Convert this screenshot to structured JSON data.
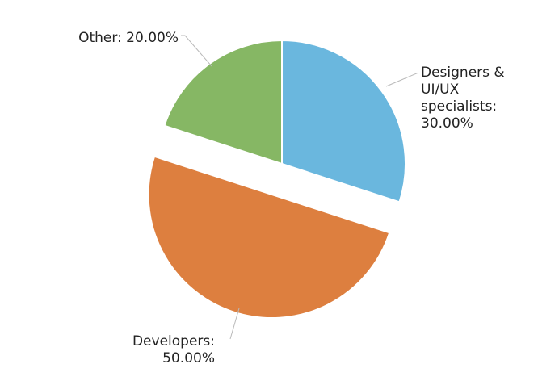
{
  "chart_data": {
    "type": "pie",
    "title": "",
    "slices": [
      {
        "name": "Designers & UI/UX specialists",
        "value": 30.0,
        "color": "#6ab7de",
        "exploded": false,
        "label_lines": [
          "Designers &",
          "UI/UX",
          "specialists:",
          "30.00%"
        ]
      },
      {
        "name": "Developers",
        "value": 50.0,
        "color": "#dd7f3f",
        "exploded": true,
        "label_lines": [
          "Developers:",
          "50.00%"
        ]
      },
      {
        "name": "Other",
        "value": 20.0,
        "color": "#86b764",
        "exploded": false,
        "label_lines": [
          "Other: 20.00%"
        ]
      }
    ],
    "start_angle_deg": 0,
    "direction": "clockwise"
  }
}
